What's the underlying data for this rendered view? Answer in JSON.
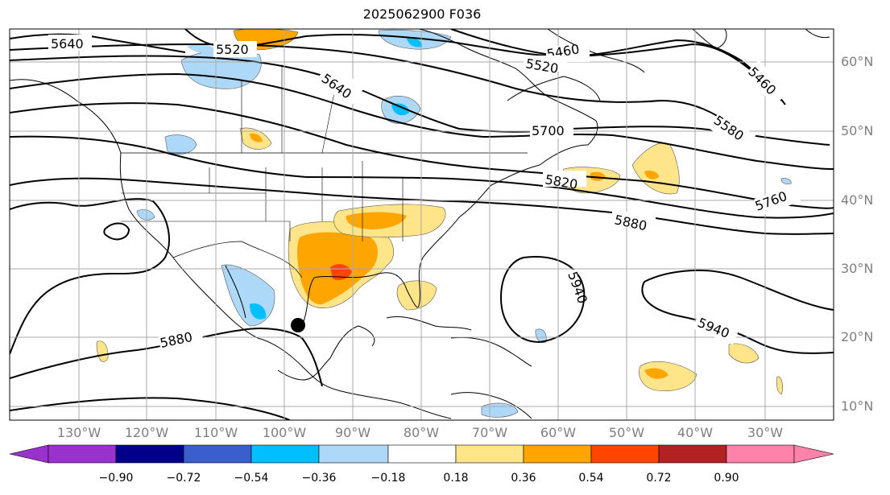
{
  "title": "2025062900 F036",
  "lat_labels": [
    "60°N",
    "50°N",
    "40°N",
    "30°N",
    "20°N",
    "10°N"
  ],
  "lon_labels": [
    "130°W",
    "120°W",
    "110°W",
    "100°W",
    "90°W",
    "80°W",
    "70°W",
    "60°W",
    "50°W",
    "40°W",
    "30°W"
  ],
  "contour_labels": [
    "5640",
    "5520",
    "5640",
    "5460",
    "5520",
    "5460",
    "5700",
    "5580",
    "5820",
    "5760",
    "5880",
    "5940",
    "5940",
    "5880"
  ],
  "colorbar": {
    "ticks": [
      "−0.90",
      "−0.72",
      "−0.54",
      "−0.36",
      "−0.18",
      "0.18",
      "0.36",
      "0.54",
      "0.72",
      "0.90"
    ],
    "colors": [
      "#9932cc",
      "#00008b",
      "#3a5fcd",
      "#00bfff",
      "#add8f8",
      "#ffffff",
      "#ffe58a",
      "#ffa500",
      "#ff4500",
      "#b22222",
      "#ff82ab"
    ]
  },
  "storm_marker": "black-dot"
}
